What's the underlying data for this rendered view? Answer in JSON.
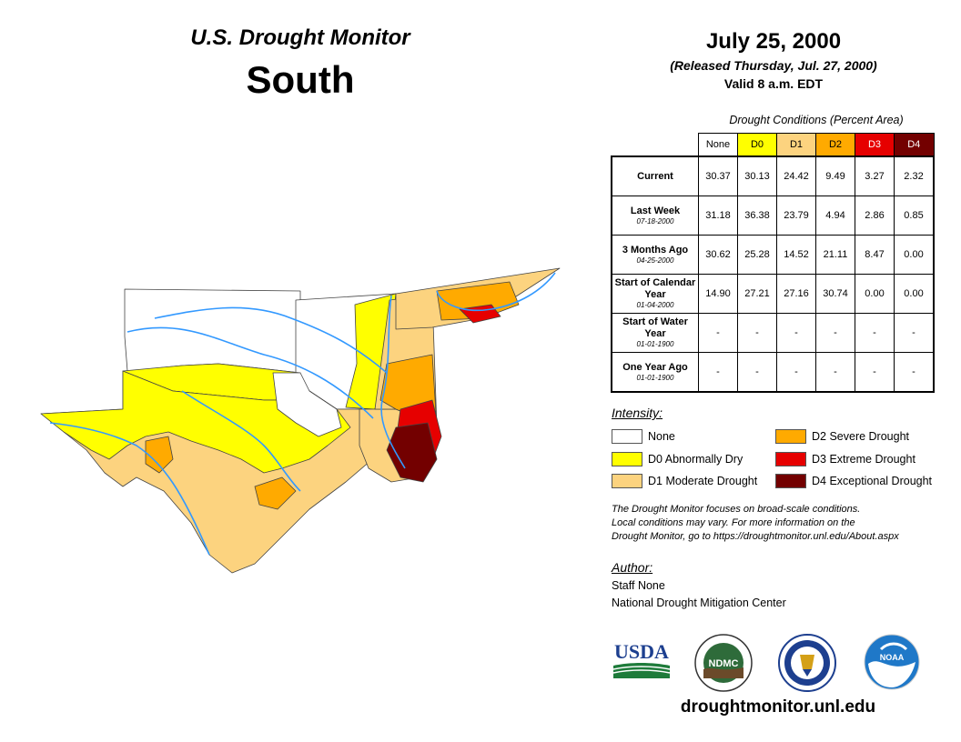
{
  "header": {
    "title": "U.S. Drought Monitor",
    "region": "South",
    "date": "July 25, 2000",
    "released": "(Released Thursday, Jul. 27, 2000)",
    "valid": "Valid 8 a.m. EDT"
  },
  "table": {
    "caption": "Drought Conditions (Percent Area)",
    "columns": [
      "None",
      "D0",
      "D1",
      "D2",
      "D3",
      "D4"
    ],
    "column_colors": [
      "#ffffff",
      "#ffff00",
      "#fcd37f",
      "#ffaa00",
      "#e60000",
      "#730000"
    ],
    "rows": [
      {
        "label": "Current",
        "sub": "",
        "values": [
          "30.37",
          "30.13",
          "24.42",
          "9.49",
          "3.27",
          "2.32"
        ]
      },
      {
        "label": "Last Week",
        "sub": "07-18-2000",
        "values": [
          "31.18",
          "36.38",
          "23.79",
          "4.94",
          "2.86",
          "0.85"
        ]
      },
      {
        "label": "3 Months Ago",
        "sub": "04-25-2000",
        "values": [
          "30.62",
          "25.28",
          "14.52",
          "21.11",
          "8.47",
          "0.00"
        ]
      },
      {
        "label": "Start of Calendar Year",
        "sub": "01-04-2000",
        "values": [
          "14.90",
          "27.21",
          "27.16",
          "30.74",
          "0.00",
          "0.00"
        ]
      },
      {
        "label": "Start of Water Year",
        "sub": "01-01-1900",
        "values": [
          "-",
          "-",
          "-",
          "-",
          "-",
          "-"
        ]
      },
      {
        "label": "One Year Ago",
        "sub": "01-01-1900",
        "values": [
          "-",
          "-",
          "-",
          "-",
          "-",
          "-"
        ]
      }
    ]
  },
  "legend": {
    "title": "Intensity:",
    "items": [
      {
        "label": "None",
        "color": "#ffffff"
      },
      {
        "label": "D0 Abnormally Dry",
        "color": "#ffff00"
      },
      {
        "label": "D1 Moderate Drought",
        "color": "#fcd37f"
      },
      {
        "label": "D2 Severe Drought",
        "color": "#ffaa00"
      },
      {
        "label": "D3 Extreme Drought",
        "color": "#e60000"
      },
      {
        "label": "D4 Exceptional Drought",
        "color": "#730000"
      }
    ]
  },
  "note": {
    "line1": "The Drought Monitor focuses on broad-scale conditions.",
    "line2": "Local conditions may vary. For more information on the",
    "line3": "Drought Monitor, go to https://droughtmonitor.unl.edu/About.aspx"
  },
  "author": {
    "title": "Author:",
    "name": "Staff None",
    "org": "National Drought Mitigation Center"
  },
  "logos": {
    "usda": "USDA",
    "ndmc": "NDMC",
    "noaa": "NOAA"
  },
  "footer": {
    "url": "droughtmonitor.unl.edu"
  }
}
